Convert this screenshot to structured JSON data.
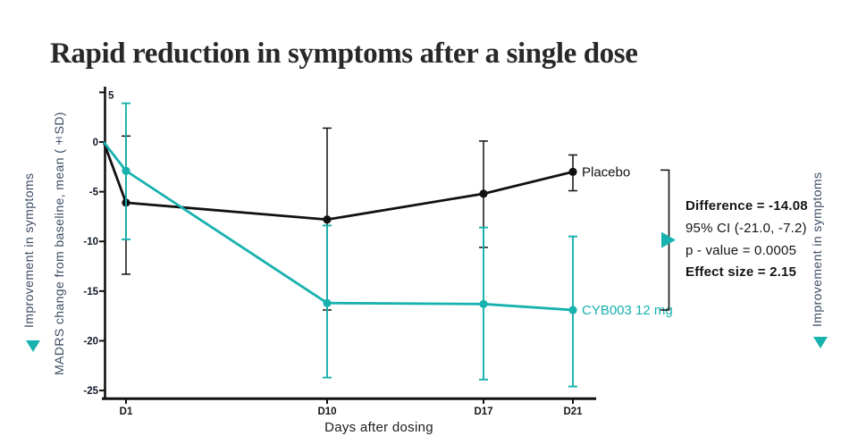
{
  "title": "Rapid reduction in symptoms after a single dose",
  "left_panel": {
    "improvement_label": "Improvement in symptoms"
  },
  "right_panel": {
    "improvement_label": "Improvement in symptoms"
  },
  "annotation": {
    "difference": "Difference = -14.08",
    "ci": "95% CI (-21.0, -7.2)",
    "p_value": "p - value = 0.0005",
    "effect_size": "Effect size = 2.15"
  },
  "colors": {
    "teal": "#17b1ae",
    "ink": "#111111",
    "navy": "#3d4c63"
  },
  "chart_data": {
    "type": "line",
    "title": "",
    "xlabel": "Days after dosing",
    "ylabel": "MADRS change from baseline, mean (±SD)",
    "x_days": [
      0,
      1,
      10,
      17,
      21
    ],
    "x_tick_days": [
      1,
      10,
      17,
      21
    ],
    "x_tick_labels": [
      "D1",
      "D10",
      "D17",
      "D21"
    ],
    "y_ticks": [
      5,
      0,
      -5,
      -10,
      -15,
      -20,
      -25
    ],
    "y_tick_labels": [
      "5",
      "0",
      "-5",
      "-10",
      "-15",
      "-20",
      "-25"
    ],
    "ylim": [
      -25,
      5
    ],
    "grid": false,
    "legend_position": "end-of-line",
    "series": [
      {
        "name": "Placebo",
        "color": "#111111",
        "values": [
          0,
          -6.1,
          -7.8,
          -5.2,
          -3.0
        ],
        "err_high": [
          null,
          0.6,
          1.4,
          0.1,
          -1.3
        ],
        "err_low": [
          null,
          -13.3,
          -16.9,
          -10.6,
          -4.9
        ]
      },
      {
        "name": "CYB003 12 mg",
        "color": "#17b1ae",
        "values": [
          0,
          -2.9,
          -16.2,
          -16.3,
          -16.9
        ],
        "err_high": [
          null,
          3.9,
          -8.4,
          -8.6,
          -9.5
        ],
        "err_low": [
          null,
          -9.8,
          -23.7,
          -23.9,
          -24.6
        ]
      }
    ]
  }
}
